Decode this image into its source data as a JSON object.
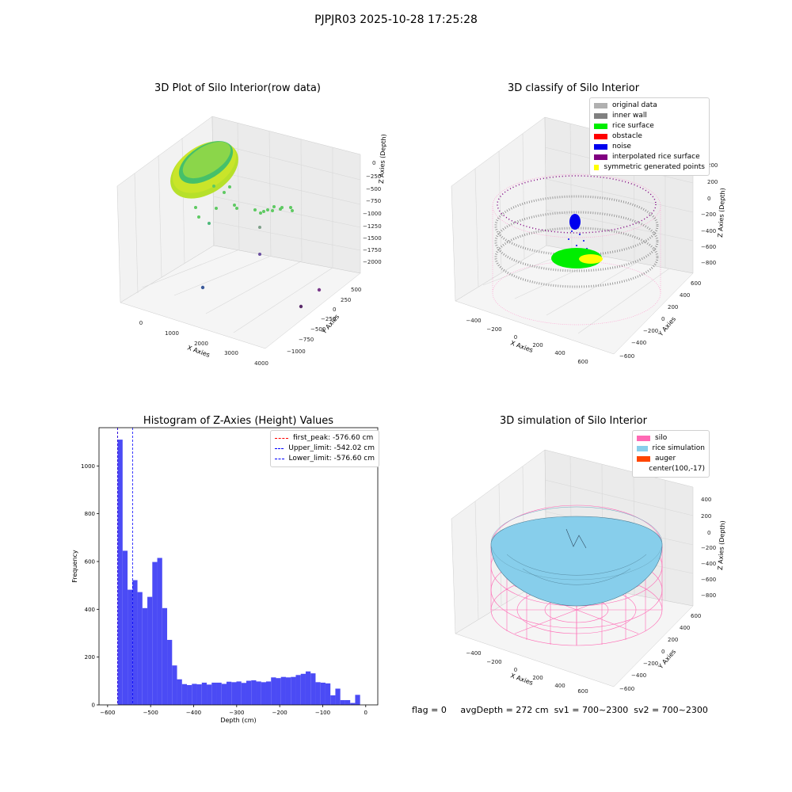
{
  "suptitle": "PJPJR03 2025-10-28 17:25:28",
  "panel1": {
    "title": "3D Plot of Silo Interior(row data)",
    "xlabel": "X Axies",
    "ylabel": "Y Axies",
    "zlabel": "Z Axies (Depth)",
    "xticks": [
      "0",
      "1000",
      "2000",
      "3000",
      "4000"
    ],
    "yticks": [
      "500",
      "250",
      "0",
      "−250",
      "−500",
      "−750",
      "−1000"
    ],
    "zticks": [
      "0",
      "−250",
      "−500",
      "−750",
      "−1000",
      "−1250",
      "−1500",
      "−1750",
      "−2000"
    ]
  },
  "panel2": {
    "title": "3D classify of Silo Interior",
    "xlabel": "X Axies",
    "ylabel": "Y Axies",
    "zlabel": "Z Axies (Depth)",
    "xticks": [
      "−400",
      "−200",
      "0",
      "200",
      "400",
      "600"
    ],
    "yticks": [
      "600",
      "400",
      "200",
      "0",
      "−200",
      "−400",
      "−600"
    ],
    "zticks": [
      "200",
      "0",
      "−200",
      "−400",
      "−600",
      "−800"
    ],
    "legend": [
      {
        "label": "original data",
        "color": "#b0b0b0"
      },
      {
        "label": "inner wall",
        "color": "#808080"
      },
      {
        "label": "rice surface",
        "color": "#00ee00"
      },
      {
        "label": "obstacle",
        "color": "#ff0000"
      },
      {
        "label": "noise",
        "color": "#0000ee"
      },
      {
        "label": "interpolated rice surface",
        "color": "#800080"
      },
      {
        "label": "symmetric generated points",
        "color": "#ffff00"
      }
    ]
  },
  "panel3": {
    "title": "Histogram of Z-Axies (Height) Values",
    "legend": [
      {
        "label": "first_peak: -576.60 cm",
        "color": "#ff0000"
      },
      {
        "label": "Upper_limit: -542.02 cm",
        "color": "#0000ff"
      },
      {
        "label": "Lower_limit: -576.60 cm",
        "color": "#0000ff"
      }
    ]
  },
  "panel4": {
    "title": "3D simulation of Silo Interior",
    "xlabel": "X Axies",
    "ylabel": "Y Axies",
    "zlabel": "Z Axies (Depth)",
    "xticks": [
      "−400",
      "−200",
      "0",
      "200",
      "400",
      "600"
    ],
    "yticks": [
      "600",
      "400",
      "200",
      "0",
      "−200",
      "−400",
      "−600"
    ],
    "zticks": [
      "400",
      "200",
      "0",
      "−200",
      "−400",
      "−600",
      "−800"
    ],
    "legend": [
      {
        "label": "silo",
        "color": "#ff69b4"
      },
      {
        "label": "rice simulation",
        "color": "#87ceeb"
      },
      {
        "label": "auger",
        "color": "#ff4500"
      },
      {
        "label": "center(100,-17)",
        "color": ""
      }
    ]
  },
  "status": {
    "flag": "flag = 0",
    "avg": "avgDepth = 272 cm",
    "sv1": "sv1 = 700~2300",
    "sv2": "sv2 = 700~2300"
  },
  "chart_data": [
    {
      "type": "bar",
      "title": "Histogram of Z-Axies (Height) Values",
      "xlabel": "Depth (cm)",
      "ylabel": "Frequency",
      "xlim": [
        -620,
        28
      ],
      "ylim": [
        0,
        1160
      ],
      "xticks": [
        -600,
        -500,
        -400,
        -300,
        -200,
        -100,
        0
      ],
      "yticks": [
        0,
        200,
        400,
        600,
        800,
        1000
      ],
      "bin_start": -576.6,
      "bin_width": 11.5,
      "values": [
        1110,
        645,
        482,
        522,
        472,
        405,
        452,
        598,
        615,
        405,
        272,
        165,
        107,
        87,
        83,
        88,
        86,
        93,
        85,
        93,
        93,
        88,
        97,
        95,
        98,
        92,
        101,
        103,
        98,
        95,
        98,
        115,
        112,
        117,
        115,
        117,
        125,
        130,
        140,
        132,
        95,
        93,
        90,
        40,
        68,
        20,
        20,
        8,
        42
      ],
      "vlines": [
        {
          "name": "first_peak",
          "x": -576.6,
          "color": "#ff0000"
        },
        {
          "name": "Upper_limit",
          "x": -542.02,
          "color": "#0000ff"
        },
        {
          "name": "Lower_limit",
          "x": -576.6,
          "color": "#0000ff"
        }
      ],
      "bar_color": "#4b4bf5",
      "grid": false,
      "legend_position": "top-right"
    }
  ]
}
